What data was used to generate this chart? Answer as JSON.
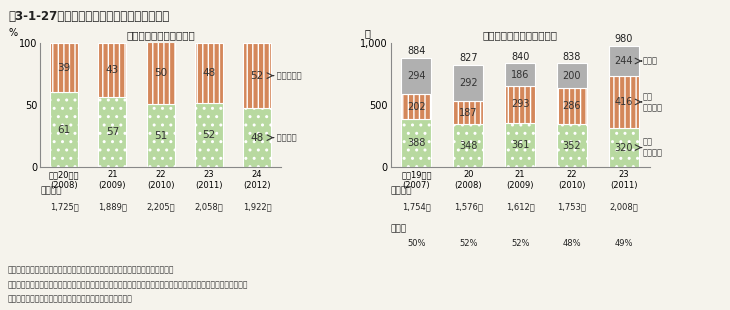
{
  "title": "図3-1-27　道府県農業大学校の学生数の推移",
  "left_subtitle": "（出身別入学者数割合）",
  "right_subtitle": "（卒業生のうち就農者数）",
  "left_years": [
    "平成20年度\n(2008)",
    "21\n(2009)",
    "22\n(2010)",
    "23\n(2011)",
    "24\n(2012)"
  ],
  "left_nouke": [
    61,
    57,
    51,
    52,
    48
  ],
  "left_hinouke": [
    39,
    43,
    50,
    48,
    52
  ],
  "left_enrollees_label": "入学者数",
  "left_enrollees": [
    "1,725人",
    "1,889人",
    "2,205人",
    "2,058人",
    "1,922人"
  ],
  "right_years": [
    "平成19年度\n(2007)",
    "20\n(2008)",
    "21\n(2009)",
    "22\n(2010)",
    "23\n(2011)"
  ],
  "right_jiei": [
    388,
    348,
    361,
    352,
    320
  ],
  "right_koyo": [
    202,
    187,
    293,
    286,
    416
  ],
  "right_sonota": [
    294,
    292,
    186,
    200,
    244
  ],
  "right_totals": [
    884,
    827,
    840,
    838,
    980
  ],
  "right_graduates_label": "卒業生数",
  "right_graduates": [
    "1,754人",
    "1,576人",
    "1,612人",
    "1,753人",
    "2,008人"
  ],
  "right_rates_label": "就農率",
  "right_rates": [
    "50%",
    "52%",
    "52%",
    "48%",
    "49%"
  ],
  "label_nouke": "← 農家出身",
  "label_hinouke": "← 非農家出身",
  "label_sonota": "←その他",
  "label_koyo_line1": "雇用",
  "label_koyo_line2": "就農者数",
  "label_koyo_arrow": "←",
  "label_jiei_line1": "自営",
  "label_jiei_line2": "就農者数",
  "label_jiei_arrow": "←",
  "color_nouke": "#b8d9a0",
  "color_hinouke": "#d4875a",
  "color_jiei": "#b8d9a0",
  "color_koyo": "#d4875a",
  "color_sonota": "#b0b0b0",
  "bg_color": "#f5f3ec",
  "title_bg": "#d9d3be",
  "footer_line1": "資料：全国農業大学校協議会「全国農業大学校の概要」を基に農林水産省で作成",
  "footer_note1": "　注：１）就農者数における「その他」は、継続研修と農業以外の仕事が主（就職者数のうち農業従事者）の合計。",
  "footer_note2": "　　　２）数値は四捨五入しており、合計とは一致しない。"
}
